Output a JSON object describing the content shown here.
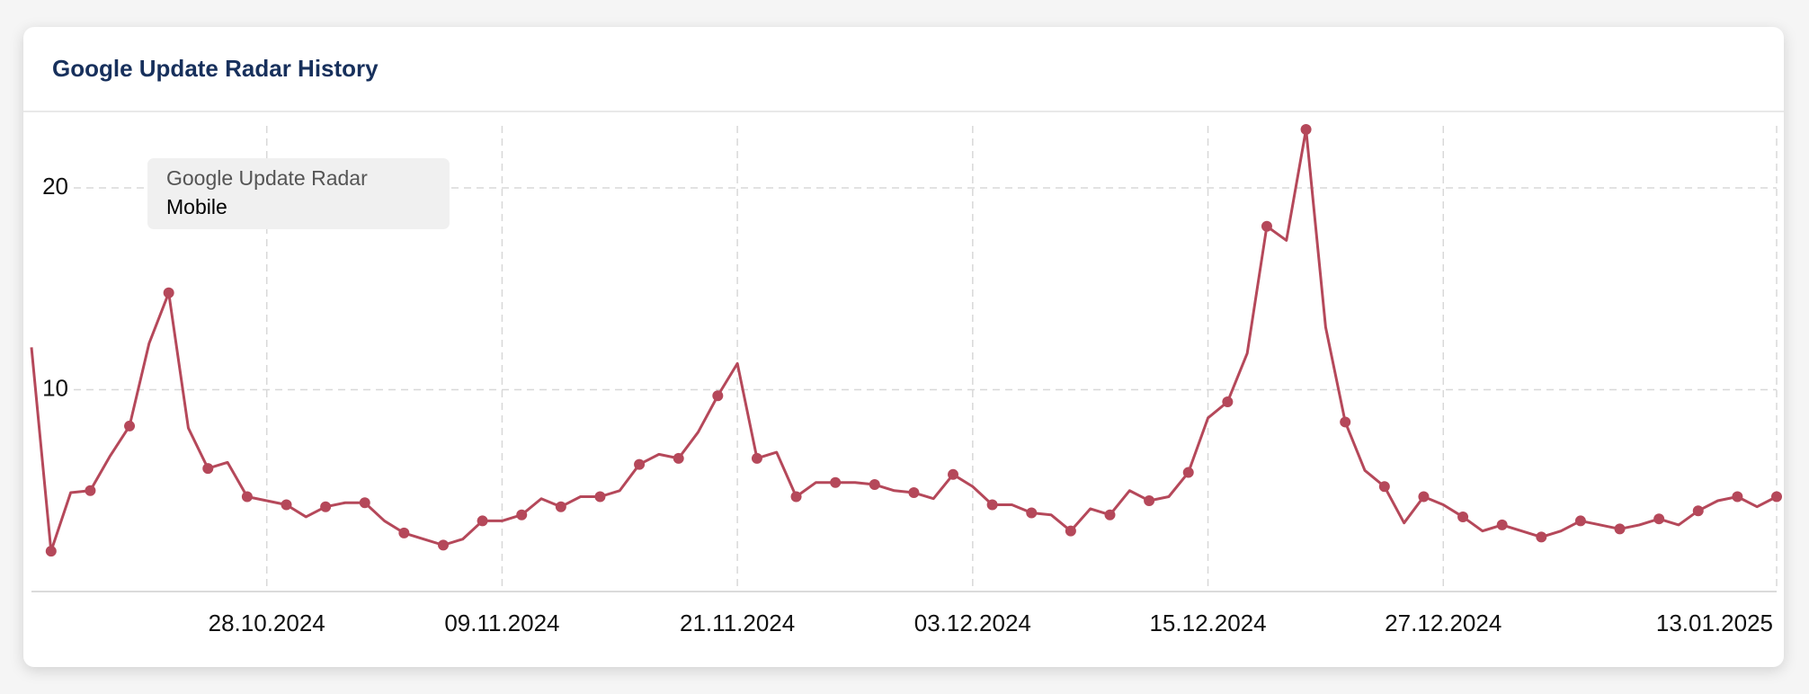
{
  "chart_data": {
    "type": "line",
    "title": "Google Update Radar History",
    "legend_title": "Google Update Radar",
    "x": [
      "16.10.2024",
      "17.10.2024",
      "18.10.2024",
      "19.10.2024",
      "20.10.2024",
      "21.10.2024",
      "22.10.2024",
      "23.10.2024",
      "24.10.2024",
      "25.10.2024",
      "26.10.2024",
      "27.10.2024",
      "28.10.2024",
      "29.10.2024",
      "30.10.2024",
      "31.10.2024",
      "01.11.2024",
      "02.11.2024",
      "03.11.2024",
      "04.11.2024",
      "05.11.2024",
      "06.11.2024",
      "07.11.2024",
      "08.11.2024",
      "09.11.2024",
      "10.11.2024",
      "11.11.2024",
      "12.11.2024",
      "13.11.2024",
      "14.11.2024",
      "15.11.2024",
      "16.11.2024",
      "17.11.2024",
      "18.11.2024",
      "19.11.2024",
      "20.11.2024",
      "21.11.2024",
      "22.11.2024",
      "23.11.2024",
      "24.11.2024",
      "25.11.2024",
      "26.11.2024",
      "27.11.2024",
      "28.11.2024",
      "29.11.2024",
      "30.11.2024",
      "01.12.2024",
      "02.12.2024",
      "03.12.2024",
      "04.12.2024",
      "05.12.2024",
      "06.12.2024",
      "07.12.2024",
      "08.12.2024",
      "09.12.2024",
      "10.12.2024",
      "11.12.2024",
      "12.12.2024",
      "13.12.2024",
      "14.12.2024",
      "15.12.2024",
      "16.12.2024",
      "17.12.2024",
      "18.12.2024",
      "19.12.2024",
      "20.12.2024",
      "21.12.2024",
      "22.12.2024",
      "23.12.2024",
      "24.12.2024",
      "25.12.2024",
      "26.12.2024",
      "27.12.2024",
      "28.12.2024",
      "29.12.2024",
      "30.12.2024",
      "31.12.2024",
      "01.01.2025",
      "02.01.2025",
      "03.01.2025",
      "04.01.2025",
      "05.01.2025",
      "06.01.2025",
      "07.01.2025",
      "08.01.2025",
      "09.01.2025",
      "10.01.2025",
      "11.01.2025",
      "12.01.2025",
      "13.01.2025"
    ],
    "series": [
      {
        "name": "Mobile",
        "color": "#b5485a",
        "values": [
          12.1,
          2.0,
          4.9,
          5.0,
          6.7,
          8.2,
          12.3,
          14.8,
          8.1,
          6.1,
          6.4,
          4.7,
          4.5,
          4.3,
          3.7,
          4.2,
          4.4,
          4.4,
          3.5,
          2.9,
          2.6,
          2.3,
          2.6,
          3.5,
          3.5,
          3.8,
          4.6,
          4.2,
          4.7,
          4.7,
          5.0,
          6.3,
          6.8,
          6.6,
          7.9,
          9.7,
          11.3,
          6.6,
          6.9,
          4.7,
          5.4,
          5.4,
          5.4,
          5.3,
          5.0,
          4.9,
          4.6,
          5.8,
          5.2,
          4.3,
          4.3,
          3.9,
          3.8,
          3.0,
          4.1,
          3.8,
          5.0,
          4.5,
          4.7,
          5.9,
          8.6,
          9.4,
          11.8,
          18.1,
          17.4,
          22.9,
          13.1,
          8.4,
          6.0,
          5.2,
          3.4,
          4.7,
          4.3,
          3.7,
          3.0,
          3.3,
          3.0,
          2.7,
          3.0,
          3.5,
          3.3,
          3.1,
          3.3,
          3.6,
          3.3,
          4.0,
          4.5,
          4.7,
          4.2,
          4.7
        ]
      }
    ],
    "xticks": [
      "28.10.2024",
      "09.11.2024",
      "21.11.2024",
      "03.12.2024",
      "15.12.2024",
      "27.12.2024",
      "13.01.2025"
    ],
    "ylim": [
      0,
      23.7
    ],
    "yticks": [
      10,
      20
    ],
    "grid": true
  }
}
